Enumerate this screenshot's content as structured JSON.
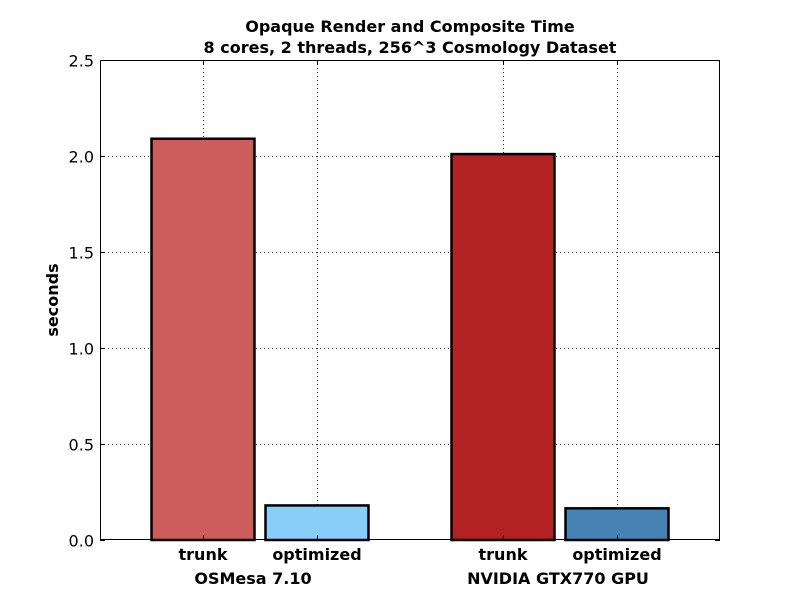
{
  "chart_data": {
    "type": "bar",
    "title": "Opaque Render and Composite Time",
    "subtitle": "8 cores, 2 threads, 256^3 Cosmology Dataset",
    "xlabel": "",
    "ylabel": "seconds",
    "ylim": [
      0,
      2.5
    ],
    "yticks": [
      "0.0",
      "0.5",
      "1.0",
      "1.5",
      "2.0",
      "2.5"
    ],
    "grid": true,
    "groups": [
      {
        "name": "OSMesa 7.10",
        "bars": [
          {
            "label": "trunk",
            "value": 2.09,
            "color": "#cd5c5c"
          },
          {
            "label": "optimized",
            "value": 0.18,
            "color": "#87cefa"
          }
        ]
      },
      {
        "name": "NVIDIA GTX770 GPU",
        "bars": [
          {
            "label": "trunk",
            "value": 2.01,
            "color": "#b22222"
          },
          {
            "label": "optimized",
            "value": 0.165,
            "color": "#4682b4"
          }
        ]
      }
    ]
  }
}
